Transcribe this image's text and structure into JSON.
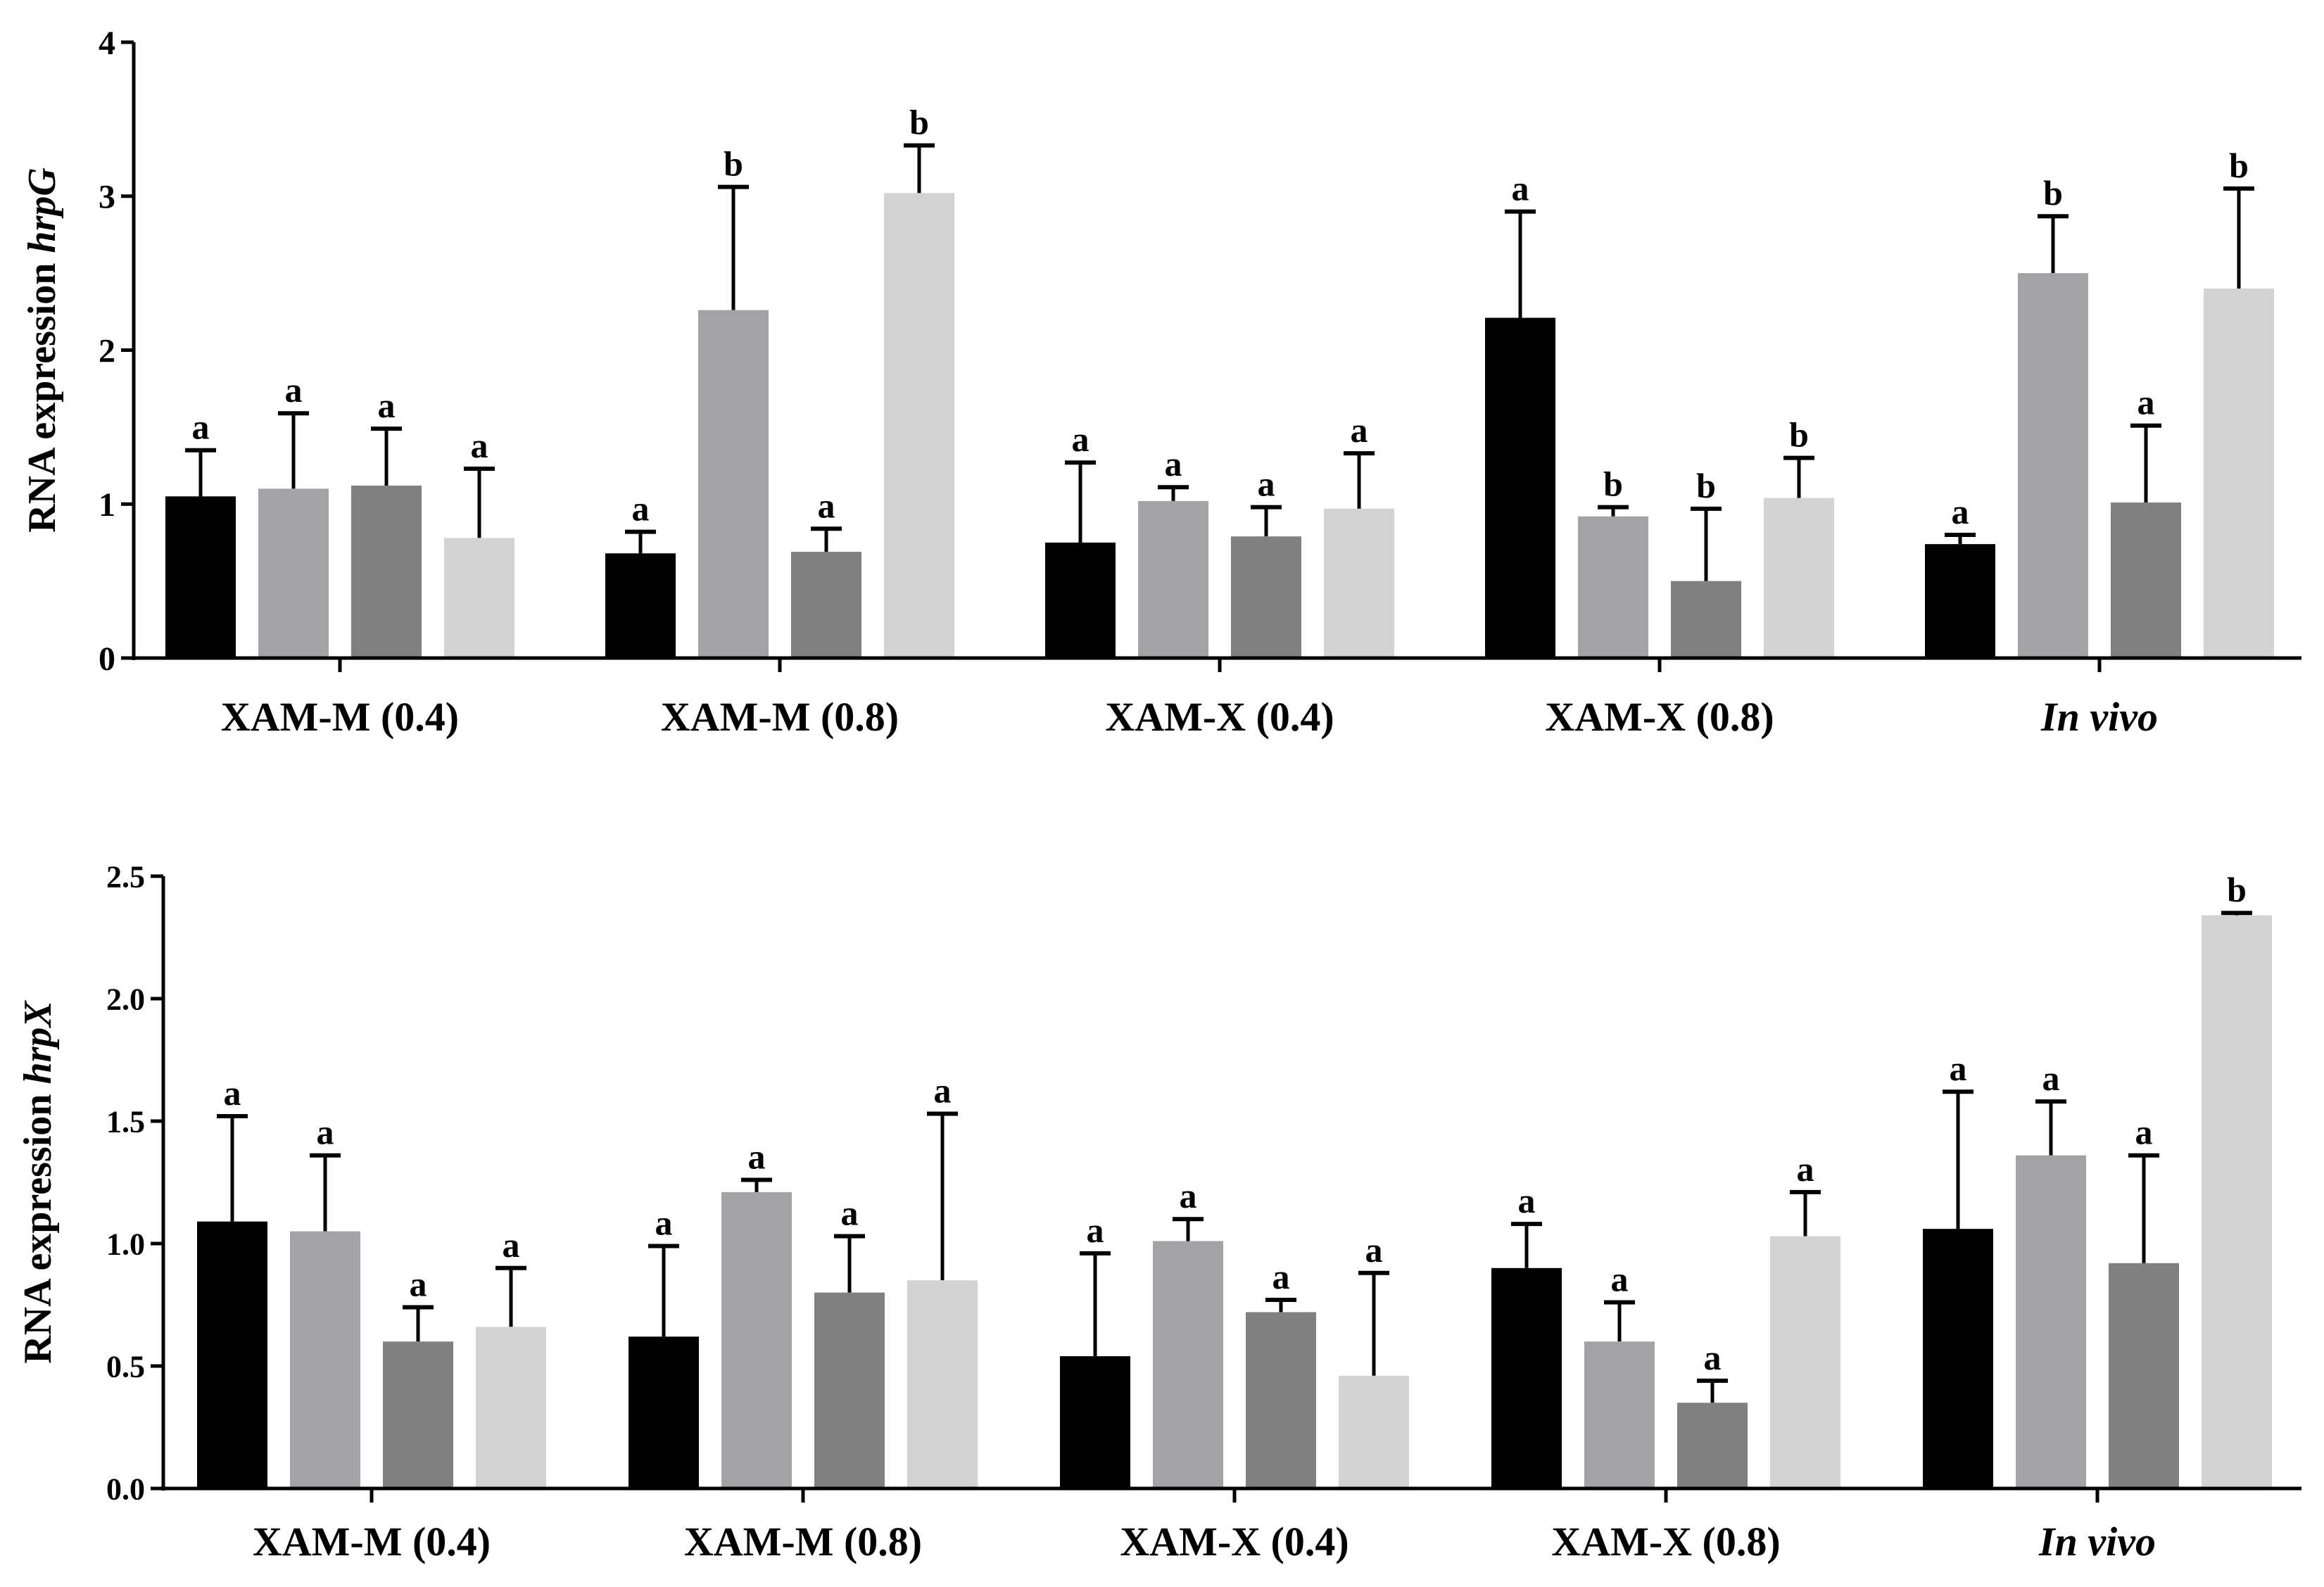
{
  "chart_data": [
    {
      "type": "bar",
      "ylabel_prefix": "RNA expression ",
      "ylabel_gene": "hrpG",
      "ylim": [
        0,
        4
      ],
      "yticks": [
        "0",
        "1",
        "2",
        "3",
        "4"
      ],
      "categories": [
        "XAM-M (0.4)",
        "XAM-M (0.8)",
        "XAM-X (0.4)",
        "XAM-X (0.8)",
        "In vivo"
      ],
      "series_colors": [
        "#000000",
        "#a3a3a6",
        "#808080",
        "#d3d3d3"
      ],
      "series": [
        {
          "values": [
            1.05,
            0.68,
            0.75,
            2.21,
            0.74
          ],
          "errors": [
            0.3,
            0.14,
            0.52,
            0.69,
            0.06
          ],
          "letters": [
            "a",
            "a",
            "a",
            "a",
            "a"
          ]
        },
        {
          "values": [
            1.1,
            2.26,
            1.02,
            0.92,
            2.5
          ],
          "errors": [
            0.49,
            0.8,
            0.09,
            0.06,
            0.37
          ],
          "letters": [
            "a",
            "b",
            "a",
            "b",
            "b"
          ]
        },
        {
          "values": [
            1.12,
            0.69,
            0.79,
            0.5,
            1.01
          ],
          "errors": [
            0.37,
            0.15,
            0.19,
            0.47,
            0.5
          ],
          "letters": [
            "a",
            "a",
            "a",
            "b",
            "a"
          ]
        },
        {
          "values": [
            0.78,
            3.02,
            0.97,
            1.04,
            2.4
          ],
          "errors": [
            0.45,
            0.31,
            0.36,
            0.26,
            0.65
          ],
          "letters": [
            "a",
            "b",
            "a",
            "b",
            "b"
          ]
        }
      ]
    },
    {
      "type": "bar",
      "ylabel_prefix": "RNA expression ",
      "ylabel_gene": "hrpX",
      "ylim": [
        0,
        2.5
      ],
      "yticks": [
        "0.0",
        "0.5",
        "1.0",
        "1.5",
        "2.0",
        "2.5"
      ],
      "categories": [
        "XAM-M (0.4)",
        "XAM-M (0.8)",
        "XAM-X (0.4)",
        "XAM-X (0.8)",
        "In vivo"
      ],
      "series_colors": [
        "#000000",
        "#a3a3a6",
        "#808080",
        "#d3d3d3"
      ],
      "series": [
        {
          "values": [
            1.09,
            0.62,
            0.54,
            0.9,
            1.06
          ],
          "errors": [
            0.43,
            0.37,
            0.42,
            0.18,
            0.56
          ],
          "letters": [
            "a",
            "a",
            "a",
            "a",
            "a"
          ]
        },
        {
          "values": [
            1.05,
            1.21,
            1.01,
            0.6,
            1.36
          ],
          "errors": [
            0.31,
            0.05,
            0.09,
            0.16,
            0.22
          ],
          "letters": [
            "a",
            "a",
            "a",
            "a",
            "a"
          ]
        },
        {
          "values": [
            0.6,
            0.8,
            0.72,
            0.35,
            0.92
          ],
          "errors": [
            0.14,
            0.23,
            0.05,
            0.09,
            0.44
          ],
          "letters": [
            "a",
            "a",
            "a",
            "a",
            "a"
          ]
        },
        {
          "values": [
            0.66,
            0.85,
            0.46,
            1.03,
            2.34
          ],
          "errors": [
            0.24,
            0.68,
            0.42,
            0.18,
            0.01
          ],
          "letters": [
            "a",
            "a",
            "a",
            "a",
            "b"
          ]
        }
      ]
    }
  ]
}
